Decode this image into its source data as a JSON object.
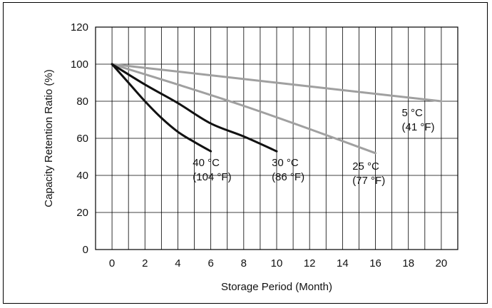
{
  "chart_data": {
    "type": "line",
    "title": "",
    "xlabel": "Storage Period (Month)",
    "ylabel": "Capacity Retention Ratio (%)",
    "xlim": [
      -1,
      21
    ],
    "ylim": [
      0,
      120
    ],
    "x_ticks": [
      0,
      2,
      4,
      6,
      8,
      10,
      12,
      14,
      16,
      18,
      20
    ],
    "y_ticks": [
      0,
      20,
      40,
      60,
      80,
      100,
      120
    ],
    "grid": true,
    "series": [
      {
        "name": "5 °C (41 °F)",
        "label_lines": [
          "5 °C",
          "(41 °F)"
        ],
        "label_pos": [
          17.6,
          72
        ],
        "color": "#a0a0a0",
        "points": [
          [
            0,
            100
          ],
          [
            20,
            80
          ]
        ]
      },
      {
        "name": "25 °C (77 °F)",
        "label_lines": [
          "25 °C",
          "(77 °F)"
        ],
        "label_pos": [
          14.6,
          43
        ],
        "color": "#a0a0a0",
        "points": [
          [
            0,
            100
          ],
          [
            4,
            89
          ],
          [
            8,
            77.5
          ],
          [
            12,
            65
          ],
          [
            16,
            52
          ]
        ]
      },
      {
        "name": "30 °C (86 °F)",
        "label_lines": [
          "30 °C",
          "(86 °F)"
        ],
        "label_pos": [
          9.7,
          45
        ],
        "color": "#111111",
        "points": [
          [
            0,
            100
          ],
          [
            2,
            89
          ],
          [
            4,
            79
          ],
          [
            6,
            68
          ],
          [
            8,
            61
          ],
          [
            10,
            53
          ]
        ]
      },
      {
        "name": "40 °C (104 °F)",
        "label_lines": [
          "40 °C",
          "(104 °F)"
        ],
        "label_pos": [
          4.9,
          45
        ],
        "color": "#111111",
        "points": [
          [
            0,
            100
          ],
          [
            1,
            90
          ],
          [
            2,
            80
          ],
          [
            3,
            71
          ],
          [
            4,
            63.5
          ],
          [
            5,
            58
          ],
          [
            6,
            53
          ]
        ]
      }
    ]
  }
}
